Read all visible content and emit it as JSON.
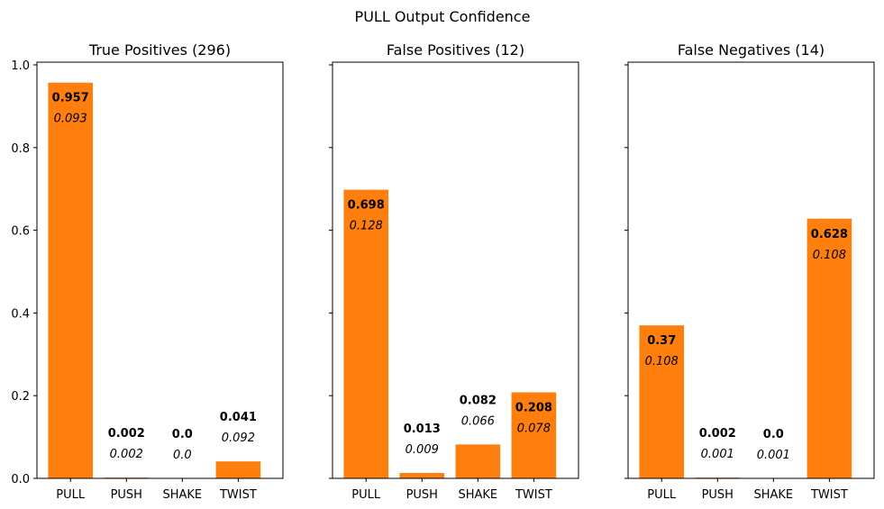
{
  "chart_data": {
    "type": "bar",
    "title": "PULL Output Confidence",
    "categories": [
      "PULL",
      "PUSH",
      "SHAKE",
      "TWIST"
    ],
    "ylim": [
      0,
      1.0
    ],
    "yticks": [
      0.0,
      0.2,
      0.4,
      0.6,
      0.8,
      1.0
    ],
    "ytick_labels": [
      "0.0",
      "0.2",
      "0.4",
      "0.6",
      "0.8",
      "1.0"
    ],
    "bar_color": "#ff7f0e",
    "grid": false,
    "shared_y": true,
    "panels": [
      {
        "title": "True Positives (296)",
        "values": [
          0.957,
          0.002,
          0.0,
          0.041
        ],
        "value_labels": [
          "0.957",
          "0.002",
          "0.0",
          "0.041"
        ],
        "std": [
          0.093,
          0.002,
          0.0,
          0.092
        ],
        "std_labels": [
          "0.093",
          "0.002",
          "0.0",
          "0.092"
        ]
      },
      {
        "title": "False Positives (12)",
        "values": [
          0.698,
          0.013,
          0.082,
          0.208
        ],
        "value_labels": [
          "0.698",
          "0.013",
          "0.082",
          "0.208"
        ],
        "std": [
          0.128,
          0.009,
          0.066,
          0.078
        ],
        "std_labels": [
          "0.128",
          "0.009",
          "0.066",
          "0.078"
        ]
      },
      {
        "title": "False Negatives (14)",
        "values": [
          0.37,
          0.002,
          0.0,
          0.628
        ],
        "value_labels": [
          "0.37",
          "0.002",
          "0.0",
          "0.628"
        ],
        "std": [
          0.108,
          0.001,
          0.001,
          0.108
        ],
        "std_labels": [
          "0.108",
          "0.001",
          "0.001",
          "0.108"
        ]
      }
    ]
  }
}
